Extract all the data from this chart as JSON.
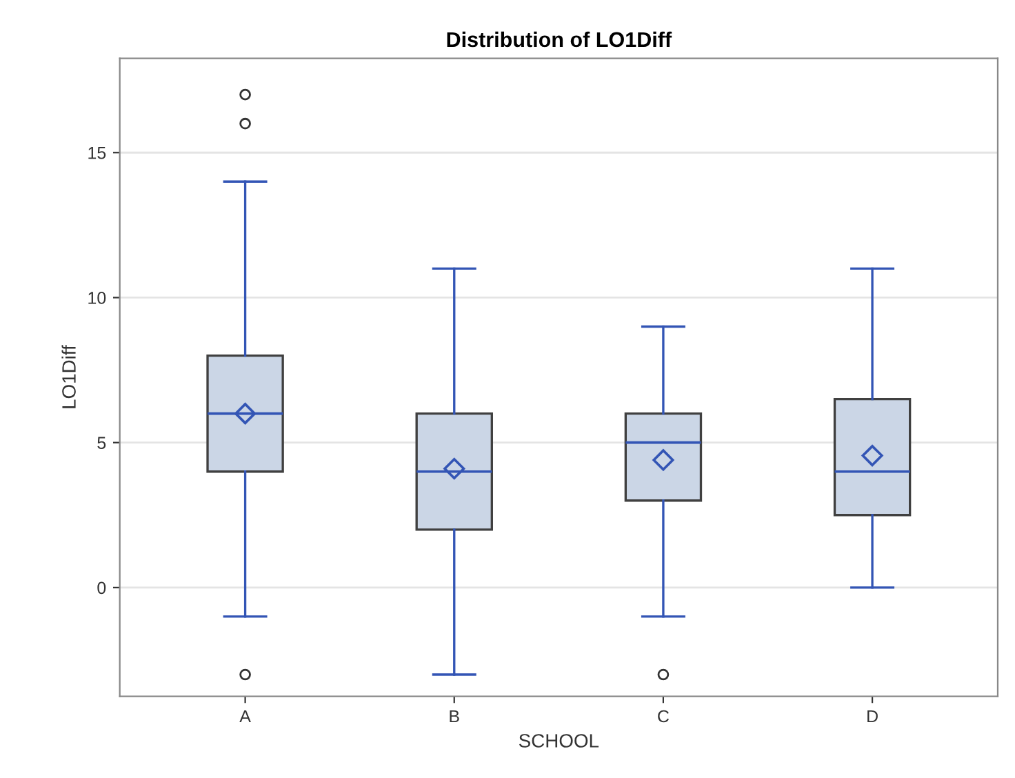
{
  "chart_data": {
    "type": "box",
    "title": "Distribution of LO1Diff",
    "xlabel": "SCHOOL",
    "ylabel": "LO1Diff",
    "categories": [
      "A",
      "B",
      "C",
      "D"
    ],
    "boxes": [
      {
        "low": -1,
        "q1": 4,
        "median": 6,
        "q3": 8,
        "high": 14,
        "mean": 6,
        "outliers": [
          -3,
          16,
          17
        ]
      },
      {
        "low": -3,
        "q1": 2,
        "median": 4,
        "q3": 6,
        "high": 11,
        "mean": 4.1
      },
      {
        "low": -1,
        "q1": 3,
        "median": 5,
        "q3": 6,
        "high": 9,
        "mean": 4.4,
        "outliers": [
          -3
        ]
      },
      {
        "low": 0,
        "q1": 2.5,
        "median": 4,
        "q3": 6.5,
        "high": 11,
        "mean": 4.55
      }
    ],
    "color": "#cbd6e6",
    "ylim": [
      -3.75,
      18.25
    ],
    "yticks": [
      0,
      5,
      10,
      15
    ],
    "grid": "y",
    "marker": "diamond"
  }
}
